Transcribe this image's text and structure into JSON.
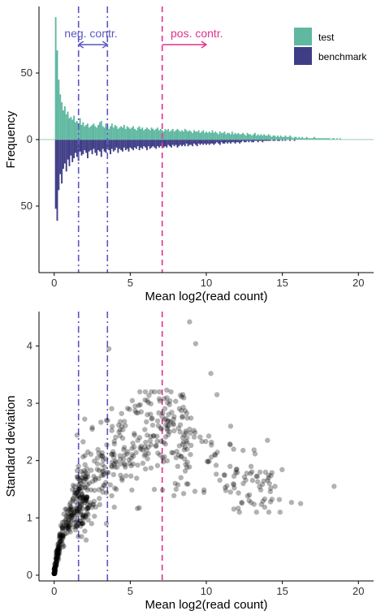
{
  "chart_data": [
    {
      "type": "bar",
      "xlabel": "Mean log2(read count)",
      "ylabel": "Frequency",
      "xlim": [
        -1,
        21
      ],
      "ylim": [
        -100,
        100
      ],
      "x_ticks": [
        0,
        5,
        10,
        15,
        20
      ],
      "x_tick_labels": [
        "0",
        "5",
        "10",
        "15",
        "20"
      ],
      "y_ticks": [
        50,
        0,
        -50
      ],
      "y_tick_labels": [
        "50",
        "0",
        "50"
      ],
      "bin_width": 0.1,
      "legend": {
        "placement": "top-right",
        "entries": [
          {
            "label": "test",
            "color": "#5fb8a0"
          },
          {
            "label": "benchmark",
            "color": "#3f3d86"
          }
        ]
      },
      "series": [
        {
          "name": "test",
          "direction": "up",
          "color": "#5fb8a0",
          "x_start": 0.1,
          "values": [
            92,
            67,
            45,
            34,
            28,
            22,
            25,
            19,
            21,
            16,
            17,
            15,
            18,
            13,
            14,
            12,
            16,
            11,
            13,
            10,
            11,
            12,
            9,
            10,
            11,
            12,
            10,
            9,
            11,
            13,
            14,
            10,
            9,
            12,
            11,
            8,
            10,
            12,
            9,
            11,
            10,
            8,
            9,
            10,
            9,
            11,
            8,
            10,
            9,
            8,
            9,
            10,
            8,
            7,
            9,
            10,
            8,
            9,
            7,
            8,
            9,
            8,
            7,
            9,
            8,
            7,
            8,
            9,
            7,
            8,
            7,
            6,
            8,
            7,
            8,
            6,
            7,
            8,
            6,
            7,
            8,
            7,
            6,
            7,
            6,
            8,
            7,
            6,
            7,
            6,
            5,
            7,
            6,
            6,
            7,
            5,
            6,
            7,
            5,
            6,
            5,
            6,
            5,
            7,
            5,
            6,
            5,
            4,
            6,
            5,
            5,
            6,
            4,
            5,
            5,
            4,
            6,
            4,
            5,
            4,
            5,
            4,
            4,
            5,
            4,
            3,
            5,
            4,
            4,
            3,
            4,
            5,
            3,
            4,
            3,
            4,
            3,
            4,
            3,
            3,
            4,
            3,
            2,
            3,
            3,
            2,
            3,
            2,
            3,
            2,
            2,
            3,
            2,
            2,
            3,
            2,
            1,
            2,
            2,
            1,
            2,
            1,
            2,
            1,
            1,
            2,
            1,
            1,
            1,
            1,
            2,
            1,
            1,
            1,
            1,
            1,
            1,
            1,
            1,
            1,
            1,
            0,
            1,
            1,
            0,
            1,
            0,
            1,
            0,
            0
          ]
        },
        {
          "name": "benchmark",
          "direction": "down",
          "color": "#3f3d86",
          "x_start": 0.1,
          "values": [
            52,
            61,
            38,
            26,
            33,
            22,
            18,
            24,
            15,
            20,
            12,
            17,
            14,
            10,
            13,
            16,
            9,
            12,
            11,
            8,
            10,
            14,
            9,
            8,
            11,
            7,
            10,
            12,
            8,
            9,
            13,
            7,
            9,
            10,
            6,
            8,
            11,
            7,
            9,
            8,
            6,
            10,
            7,
            8,
            9,
            6,
            8,
            7,
            9,
            6,
            7,
            8,
            6,
            7,
            5,
            8,
            6,
            7,
            5,
            6,
            8,
            5,
            7,
            6,
            5,
            6,
            7,
            5,
            6,
            5,
            4,
            6,
            5,
            6,
            4,
            5,
            6,
            4,
            5,
            4,
            6,
            5,
            4,
            5,
            4,
            5,
            3,
            5,
            4,
            4,
            5,
            3,
            4,
            5,
            3,
            4,
            3,
            4,
            3,
            4,
            3,
            4,
            3,
            3,
            4,
            3,
            2,
            3,
            4,
            2,
            3,
            3,
            2,
            3,
            2,
            3,
            2,
            2,
            3,
            2,
            2,
            3,
            2,
            1,
            2,
            2,
            1,
            2,
            1,
            2,
            2,
            1,
            1,
            2,
            1,
            1,
            2,
            1,
            1,
            1,
            1,
            1,
            0,
            1,
            1,
            0,
            1,
            1,
            0,
            1,
            0,
            1,
            0,
            0,
            1,
            0,
            0,
            1,
            0,
            0
          ]
        }
      ],
      "vlines": [
        {
          "x": 1.6,
          "style": "dashdot",
          "color": "#5b56c4"
        },
        {
          "x": 3.5,
          "style": "dashdot",
          "color": "#5b56c4"
        },
        {
          "x": 7.1,
          "style": "dashed",
          "color": "#e0308f"
        }
      ],
      "annotations": [
        {
          "text": "neg. contr.",
          "color": "#5b56c4",
          "arrow": "both",
          "from": 1.6,
          "to": 3.5
        },
        {
          "text": "pos. contr.",
          "color": "#e0308f",
          "arrow": "right",
          "from": 7.1,
          "to": 10.0
        }
      ]
    },
    {
      "type": "scatter",
      "xlabel": "Mean log2(read count)",
      "ylabel": "Standard deviation",
      "xlim": [
        -1,
        21
      ],
      "ylim": [
        -0.1,
        4.6
      ],
      "x_ticks": [
        0,
        5,
        10,
        15,
        20
      ],
      "x_tick_labels": [
        "0",
        "5",
        "10",
        "15",
        "20"
      ],
      "y_ticks": [
        0,
        1,
        2,
        3,
        4
      ],
      "y_tick_labels": [
        "0",
        "1",
        "2",
        "3",
        "4"
      ],
      "point_color": "#000000",
      "point_opacity": 0.3,
      "outliers": [
        {
          "x": 8.9,
          "y": 4.42
        },
        {
          "x": 9.3,
          "y": 4.04
        },
        {
          "x": 3.6,
          "y": 3.95
        },
        {
          "x": 10.3,
          "y": 3.52
        },
        {
          "x": 7.4,
          "y": 3.23
        },
        {
          "x": 10.7,
          "y": 3.15
        },
        {
          "x": 18.4,
          "y": 1.55
        },
        {
          "x": 16.2,
          "y": 1.25
        },
        {
          "x": 15.6,
          "y": 1.27
        },
        {
          "x": 14.8,
          "y": 1.32
        }
      ],
      "vlines": [
        {
          "x": 1.6,
          "style": "dashdot",
          "color": "#5b56c4"
        },
        {
          "x": 3.5,
          "style": "dashdot",
          "color": "#5b56c4"
        },
        {
          "x": 7.1,
          "style": "dashed",
          "color": "#e0308f"
        }
      ]
    }
  ]
}
